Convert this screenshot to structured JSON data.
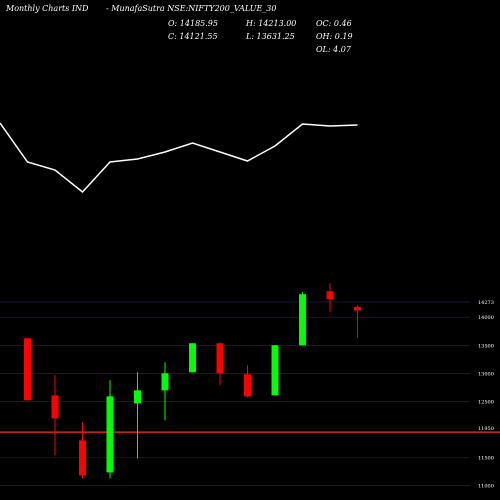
{
  "header": {
    "site": "Monthly Charts IND",
    "symbol": "- MunafaSutra NSE:NIFTY200_VALUE_30",
    "open": "O: 14185.95",
    "high": "H: 14213.00",
    "oc": "OC: 0.46",
    "close": "C: 14121.55",
    "low": "L: 13631.25",
    "oh": "OH: 0.19",
    "ol": "OL: 4.07"
  },
  "chart_data": [
    {
      "type": "line",
      "color": "#ffffff",
      "ylim": [
        0,
        100
      ],
      "x": [
        0,
        1,
        2,
        3,
        4,
        5,
        6,
        7,
        8,
        9,
        10,
        11,
        12,
        13
      ],
      "values": [
        77,
        38,
        30,
        8,
        38,
        41,
        48,
        57,
        48,
        39,
        54,
        76,
        74,
        75
      ]
    },
    {
      "type": "candlestick",
      "ylim": [
        10900,
        14700
      ],
      "up_color": "#00ff00",
      "down_color": "#ff0000",
      "yticks": [
        14273,
        14000,
        13500,
        13000,
        12500,
        11500,
        11000
      ],
      "hline": {
        "value": 11950,
        "color": "#ff3300"
      },
      "x": [
        1,
        2,
        3,
        4,
        5,
        6,
        7,
        8,
        9,
        10,
        11,
        12,
        13
      ],
      "open": [
        13625,
        12607,
        11804,
        11232,
        12464,
        12696,
        13018,
        13536,
        12982,
        12607,
        13500,
        14464,
        14185.95
      ],
      "high": [
        13625,
        12964,
        12125,
        12875,
        13018,
        13196,
        13536,
        13554,
        13143,
        13500,
        14446,
        14607,
        14213
      ],
      "low": [
        12518,
        11536,
        11125,
        11125,
        11482,
        12161,
        13018,
        12786,
        12571,
        12607,
        13500,
        14089,
        13631.25
      ],
      "close": [
        12518,
        12196,
        11179,
        12589,
        12696,
        13000,
        13536,
        13000,
        12589,
        13500,
        14411,
        14321,
        14121.55
      ]
    }
  ]
}
